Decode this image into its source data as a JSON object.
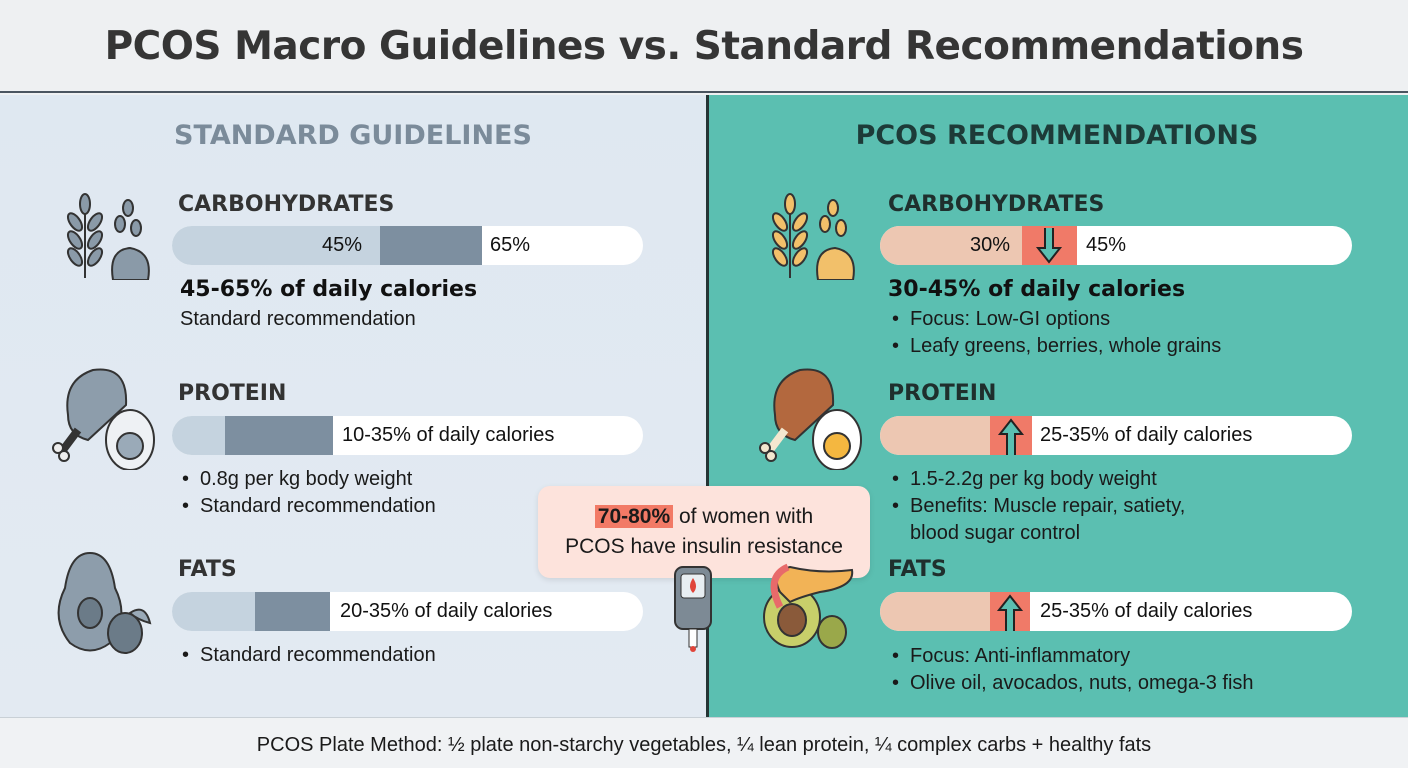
{
  "title": "PCOS Macro Guidelines vs. Standard Recommendations",
  "standard": {
    "heading": "STANDARD GUIDELINES",
    "carbs": {
      "label": "CARBOHYDRATES",
      "bar_low": "45%",
      "bar_high": "65%",
      "range_text": "45-65% of daily calories",
      "note": "Standard recommendation",
      "range_pct": [
        45,
        65
      ]
    },
    "protein": {
      "label": "PROTEIN",
      "bar_text": "10-35% of daily calories",
      "bullets": [
        "0.8g per kg body weight",
        "Standard recommendation"
      ],
      "range_pct": [
        10,
        35
      ]
    },
    "fats": {
      "label": "FATS",
      "bar_text": "20-35% of daily calories",
      "bullets": [
        "Standard recommendation"
      ],
      "range_pct": [
        20,
        35
      ]
    }
  },
  "pcos": {
    "heading": "PCOS RECOMMENDATIONS",
    "carbs": {
      "label": "CARBOHYDRATES",
      "bar_low": "30%",
      "bar_high": "45%",
      "range_text": "30-45% of daily calories",
      "bullets": [
        "Focus: Low-GI options",
        "Leafy greens, berries, whole grains"
      ],
      "trend": "down",
      "range_pct": [
        30,
        45
      ]
    },
    "protein": {
      "label": "PROTEIN",
      "bar_text": "25-35% of daily calories",
      "bullets": [
        "1.5-2.2g per kg body weight",
        "Benefits: Muscle repair, satiety,",
        "blood sugar control"
      ],
      "trend": "up",
      "range_pct": [
        25,
        35
      ]
    },
    "fats": {
      "label": "FATS",
      "bar_text": "25-35% of daily calories",
      "bullets": [
        "Focus: Anti-inflammatory",
        "Olive oil, avocados, nuts, omega-3 fish"
      ],
      "trend": "up",
      "range_pct": [
        25,
        35
      ]
    }
  },
  "callout": {
    "highlight": "70-80%",
    "text1": " of women with",
    "text2": "PCOS have insulin resistance"
  },
  "footer": "PCOS Plate Method: ½ plate non-starchy vegetables, ¼ lean protein, ¼ complex carbs + healthy fats",
  "colors": {
    "standard_bg": "#dfe8f1",
    "pcos_bg": "#5bbfb1",
    "standard_light": "#c5d3df",
    "standard_dark": "#7d8fa0",
    "pcos_light": "#edc7b2",
    "pcos_accent": "#f07a68"
  }
}
